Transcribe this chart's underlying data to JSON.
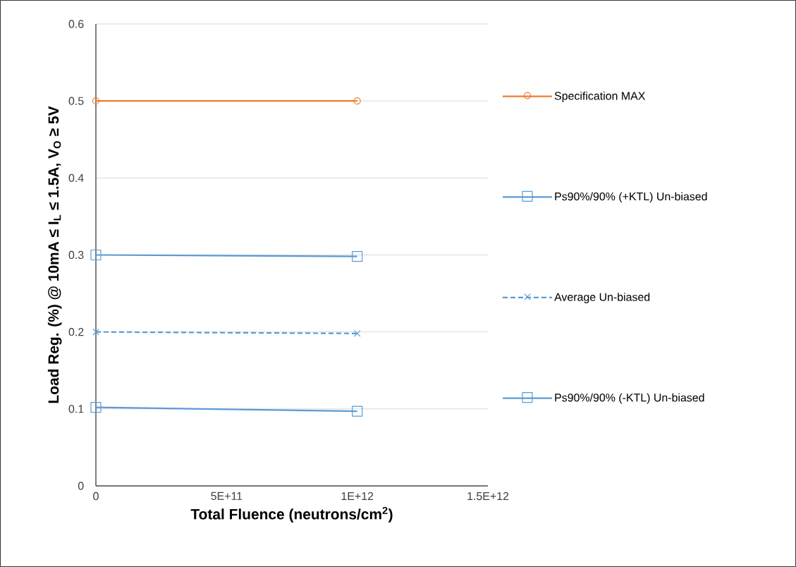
{
  "chart_data": {
    "type": "line",
    "xlabel": "Total Fluence (neutrons/cm$^{2}$)",
    "ylabel": "Load Reg. (%) @ 10mA ≤ I$_{L}$ ≤ 1.5A, V$_{O}$ ≥ 5V",
    "x": [
      0,
      1000000000000
    ],
    "series": [
      {
        "name": "Specification MAX",
        "color": "#ed7d31",
        "values": [
          0.5,
          0.5
        ],
        "marker": "circle",
        "line_style": "solid"
      },
      {
        "name": "Ps90%/90% (+KTL) Un-biased",
        "color": "#5b9bd5",
        "values": [
          0.3,
          0.298
        ],
        "marker": "square",
        "line_style": "solid"
      },
      {
        "name": "Average Un-biased",
        "color": "#5b9bd5",
        "values": [
          0.2,
          0.198
        ],
        "marker": "cross",
        "line_style": "dashed"
      },
      {
        "name": "Ps90%/90% (-KTL) Un-biased",
        "color": "#5b9bd5",
        "values": [
          0.102,
          0.097
        ],
        "marker": "square",
        "line_style": "solid"
      }
    ],
    "xlim": [
      0,
      1500000000000
    ],
    "ylim": [
      0,
      0.6
    ],
    "xticks": [
      0,
      {
        "value": 500000000000,
        "label": "5E+11"
      },
      {
        "value": 1000000000000,
        "label": "1E+12"
      },
      {
        "value": 1500000000000,
        "label": "1.5E+12"
      }
    ],
    "yticks": [
      0,
      0.1,
      0.2,
      0.3,
      0.4,
      0.5,
      0.6
    ],
    "grid": "y",
    "legend": "right"
  }
}
